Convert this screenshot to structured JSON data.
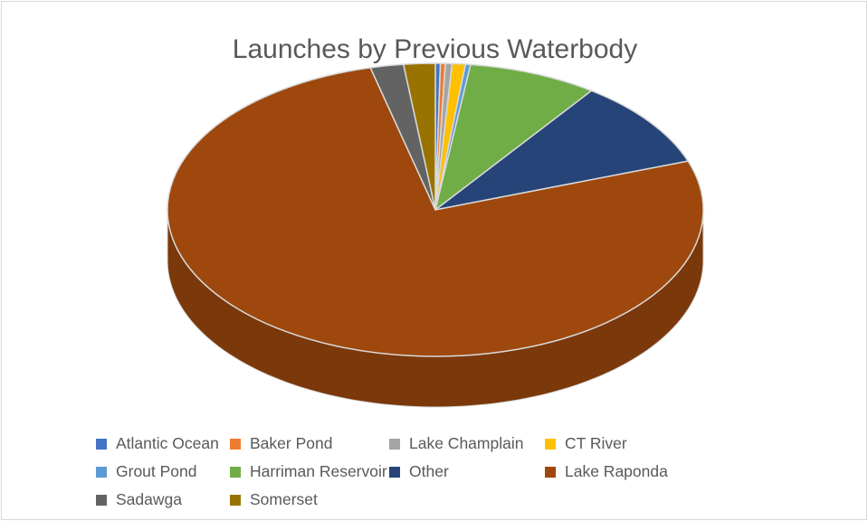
{
  "chart_data": {
    "type": "pie",
    "title": "Launches by Previous Waterbody",
    "categories": [
      "Atlantic Ocean",
      "Baker Pond",
      "Lake Champlain",
      "CT River",
      "Grout Pond",
      "Harriman Reservoir",
      "Other",
      "Lake Raponda",
      "Sadawga",
      "Somerset"
    ],
    "values": [
      0.3,
      0.3,
      0.4,
      0.8,
      0.3,
      7.8,
      9.7,
      76.5,
      2.0,
      1.9
    ],
    "value_unit": "percent (estimated)",
    "colors": [
      "#4472c4",
      "#ed7d31",
      "#a5a5a5",
      "#ffc000",
      "#5b9bd5",
      "#70ad47",
      "#264478",
      "#9e480e",
      "#636363",
      "#997300"
    ],
    "style": "3d-pie",
    "legend_position": "bottom"
  }
}
